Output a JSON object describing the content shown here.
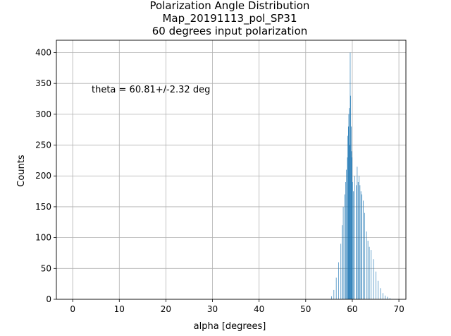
{
  "chart_data": {
    "type": "bar",
    "title_lines": [
      "Polarization Angle Distribution",
      "Map_20191113_pol_SP31",
      "60 degrees input polarization"
    ],
    "xlabel": "alpha [degrees]",
    "ylabel": "Counts",
    "xlim": [
      -3.5,
      71.5
    ],
    "ylim": [
      0,
      420
    ],
    "xticks": [
      0,
      10,
      20,
      30,
      40,
      50,
      60,
      70
    ],
    "yticks": [
      0,
      50,
      100,
      150,
      200,
      250,
      300,
      350,
      400
    ],
    "grid": true,
    "annotation": "theta = 60.81+/-2.32 deg",
    "bar_color": "#1f77b4",
    "annotation_color": "#0000ff",
    "bin_width": 0.1,
    "bins_start": [
      55.5,
      56.0,
      56.5,
      57.0,
      57.5,
      57.8,
      58.0,
      58.3,
      58.5,
      58.7,
      58.9,
      59.0,
      59.1,
      59.2,
      59.3,
      59.4,
      59.5,
      59.6,
      59.7,
      59.8,
      59.9,
      60.0,
      60.2,
      60.5,
      60.8,
      61.0,
      61.2,
      61.4,
      61.6,
      61.8,
      62.0,
      62.3,
      62.6,
      63.0,
      63.3,
      63.6,
      64.0,
      64.5,
      65.0,
      65.5,
      66.0,
      66.5,
      67.0,
      67.5,
      68.0
    ],
    "counts": [
      5,
      15,
      35,
      60,
      90,
      120,
      150,
      170,
      190,
      210,
      230,
      265,
      280,
      300,
      310,
      250,
      400,
      330,
      280,
      240,
      230,
      190,
      175,
      200,
      185,
      215,
      190,
      200,
      185,
      175,
      170,
      160,
      140,
      110,
      95,
      85,
      80,
      65,
      45,
      30,
      18,
      10,
      6,
      4,
      2
    ]
  }
}
